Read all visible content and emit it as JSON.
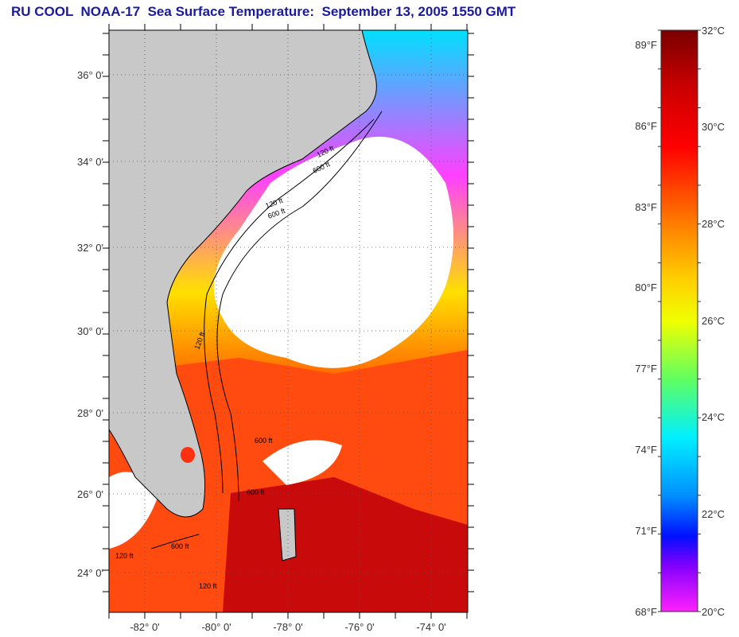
{
  "title": "RU COOL  NOAA-17  Sea Surface Temperature:  September 13, 2005 1550 GMT",
  "map": {
    "lat_labels": [
      "36° 0'",
      "34° 0'",
      "32° 0'",
      "30° 0'",
      "28° 0'",
      "26° 0'",
      "24° 0'"
    ],
    "lon_labels": [
      "-82° 0'",
      "-80° 0'",
      "-78° 0'",
      "-76° 0'",
      "-74° 0'"
    ],
    "contour_labels": [
      "120 ft",
      "600 ft",
      "120 ft",
      "600 ft",
      "120 ft",
      "600 ft",
      "600 ft",
      "120 ft",
      "600 ft",
      "120 ft"
    ],
    "colors": {
      "land": "#c8c8c8",
      "cloud": "#ffffff",
      "warm": "#ff3300",
      "hot": "#b40000"
    }
  },
  "colorbar": {
    "fahrenheit_labels": [
      "89°F",
      "86°F",
      "83°F",
      "80°F",
      "77°F",
      "74°F",
      "71°F",
      "68°F"
    ],
    "celsius_labels": [
      "32°C",
      "30°C",
      "28°C",
      "26°C",
      "24°C",
      "22°C",
      "20°C"
    ],
    "colors": [
      "#7a0000",
      "#ff0000",
      "#ff8000",
      "#ffff00",
      "#80ff40",
      "#00ffff",
      "#0080ff",
      "#0000ff",
      "#8000ff",
      "#ff00ff"
    ]
  }
}
